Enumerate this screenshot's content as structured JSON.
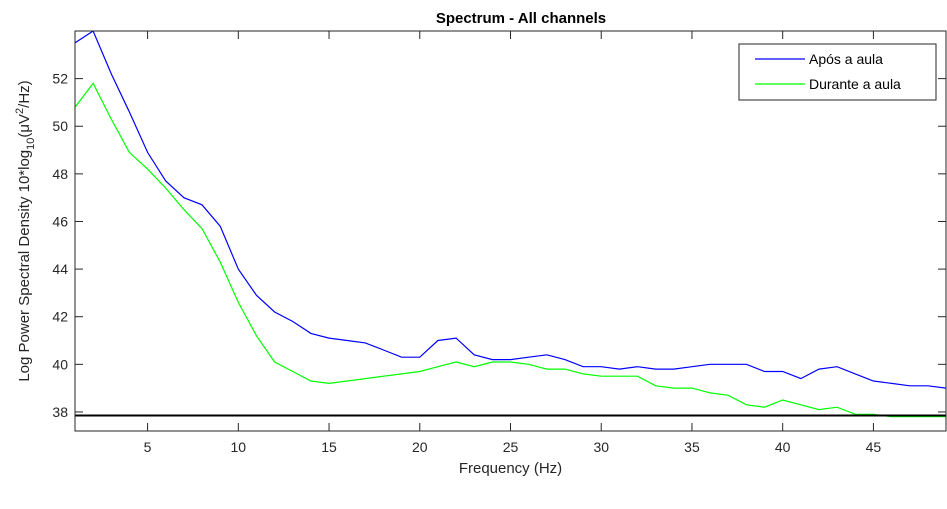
{
  "chart_data": {
    "type": "line",
    "title": "Spectrum - All channels",
    "xlabel": "Frequency (Hz)",
    "ylabel_parts": {
      "prefix": "Log Power Spectral Density 10*log",
      "sub": "10",
      "mid": "(μV",
      "sup": "2",
      "suffix": "/Hz)"
    },
    "xlim": [
      1,
      49
    ],
    "ylim": [
      37.2,
      54.0
    ],
    "xticks": [
      5,
      10,
      15,
      20,
      25,
      30,
      35,
      40,
      45
    ],
    "yticks": [
      38,
      40,
      42,
      44,
      46,
      48,
      50,
      52
    ],
    "baseline": 37.85,
    "legend_position": "top-right",
    "grid": false,
    "x": [
      1,
      2,
      3,
      4,
      5,
      6,
      7,
      8,
      9,
      10,
      11,
      12,
      13,
      14,
      15,
      16,
      17,
      18,
      19,
      20,
      21,
      22,
      23,
      24,
      25,
      26,
      27,
      28,
      29,
      30,
      31,
      32,
      33,
      34,
      35,
      36,
      37,
      38,
      39,
      40,
      41,
      42,
      43,
      44,
      45,
      46,
      47,
      48,
      49
    ],
    "series": [
      {
        "name": "Após a aula",
        "color": "#0000ff",
        "values": [
          53.5,
          54.0,
          52.2,
          50.6,
          48.9,
          47.7,
          47.0,
          46.7,
          45.8,
          44.0,
          42.9,
          42.2,
          41.8,
          41.3,
          41.1,
          41.0,
          40.9,
          40.6,
          40.3,
          40.3,
          41.0,
          41.1,
          40.4,
          40.2,
          40.2,
          40.3,
          40.4,
          40.2,
          39.9,
          39.9,
          39.8,
          39.9,
          39.8,
          39.8,
          39.9,
          40.0,
          40.0,
          40.0,
          39.7,
          39.7,
          39.4,
          39.8,
          39.9,
          39.6,
          39.3,
          39.2,
          39.1,
          39.1,
          39.0
        ]
      },
      {
        "name": "Durante a aula",
        "color": "#00ff00",
        "values": [
          50.8,
          51.8,
          50.3,
          48.9,
          48.2,
          47.4,
          46.5,
          45.7,
          44.3,
          42.6,
          41.2,
          40.1,
          39.7,
          39.3,
          39.2,
          39.3,
          39.4,
          39.5,
          39.6,
          39.7,
          39.9,
          40.1,
          39.9,
          40.1,
          40.1,
          40.0,
          39.8,
          39.8,
          39.6,
          39.5,
          39.5,
          39.5,
          39.1,
          39.0,
          39.0,
          38.8,
          38.7,
          38.3,
          38.2,
          38.5,
          38.3,
          38.1,
          38.2,
          37.9,
          37.9,
          37.8,
          37.8,
          37.8,
          37.8
        ]
      }
    ]
  }
}
